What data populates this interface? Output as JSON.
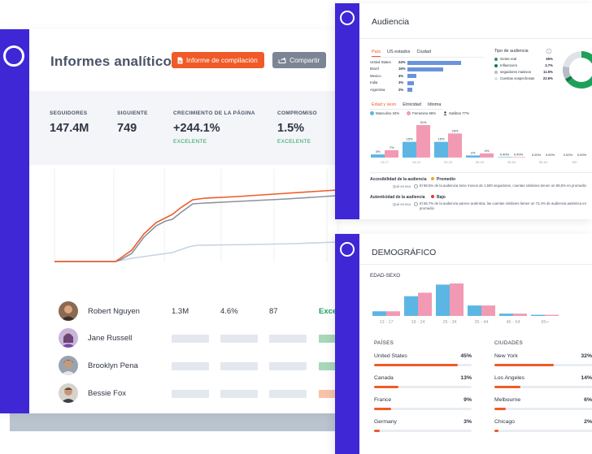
{
  "main": {
    "page_title": "Informes analíticos",
    "compile_button": "Informe de compilación",
    "share_button": "Compartir",
    "stats": [
      {
        "label": "SEGUIDORES",
        "value": "147.4M",
        "sub": ""
      },
      {
        "label": "SIGUIENTE",
        "value": "749",
        "sub": ""
      },
      {
        "label": "CRECIMIENTO DE LA PÁGINA",
        "value": "+244.1%",
        "sub": "EXCELENTE"
      },
      {
        "label": "COMPROMISO",
        "value": "1.5%",
        "sub": "EXCELENTE"
      }
    ],
    "influencers": [
      {
        "name": "Robert Nguyen",
        "followers": "1.3M",
        "engagement": "4.6%",
        "count": "87",
        "quality": "Exce"
      },
      {
        "name": "Jane Russell"
      },
      {
        "name": "Brooklyn Pena"
      },
      {
        "name": "Bessie Fox"
      }
    ],
    "colors": {
      "brand": "#3f27d6",
      "accent": "#f05a28",
      "neutral": "#7c8593",
      "good": "#1ea05a"
    },
    "icons": {
      "compile": "document-icon",
      "share": "share-icon"
    }
  },
  "audience": {
    "title": "Audiencia",
    "country_tabs": [
      "País",
      "US estados",
      "Ciudad"
    ],
    "countries": [
      {
        "name": "United States",
        "pct": "24%",
        "value": 24
      },
      {
        "name": "Brazil",
        "pct": "16%",
        "value": 16
      },
      {
        "name": "Mexico",
        "pct": "4%",
        "value": 4
      },
      {
        "name": "India",
        "pct": "3%",
        "value": 3
      },
      {
        "name": "Argentina",
        "pct": "2%",
        "value": 2
      }
    ],
    "type_title": "Tipo de audiencia",
    "types": [
      {
        "label": "Gente real",
        "pct": "65%",
        "color": "#1ea05a"
      },
      {
        "label": "Influencers",
        "pct": "3.7%",
        "color": "#147a44"
      },
      {
        "label": "seguidores masivos",
        "pct": "11.5%",
        "color": "#b5bcc6"
      },
      {
        "label": "Cuentas sospechosas",
        "pct": "22.6%",
        "color": "#dfe3e8"
      }
    ],
    "demo_tabs": [
      "Edad y sexo",
      "Etnicidad",
      "Idioma"
    ],
    "legend": {
      "male": "Masculino 34%",
      "female": "Femenino 66%",
      "lgbtq": "Sutilitos 77%"
    },
    "age_bars": [
      {
        "age": "13-17",
        "male": 3,
        "female": 7,
        "male_label": "3%",
        "female_label": "7%"
      },
      {
        "age": "18-24",
        "male": 15,
        "female": 31,
        "male_label": "15%",
        "female_label": "31%"
      },
      {
        "age": "25-34",
        "male": 15,
        "female": 23,
        "male_label": "15%",
        "female_label": "23%"
      },
      {
        "age": "35-44",
        "male": 2,
        "female": 4,
        "male_label": "2%",
        "female_label": "4%"
      },
      {
        "age": "45-54",
        "male": 0.4,
        "female": 0.4,
        "male_label": "0.40%",
        "female_label": "0.40%"
      },
      {
        "age": "55-64",
        "male": 0,
        "female": 0,
        "male_label": "0.00%",
        "female_label": "0.00%"
      },
      {
        "age": "65+",
        "male": 0,
        "female": 0,
        "male_label": "0.00%",
        "female_label": "0.00%"
      }
    ],
    "credibility": {
      "title": "Accesibilidad de la audiencia",
      "badge": "Promedio",
      "badge_color": "#f5a623",
      "q": "Qué es eso",
      "text": "El 88,5% de la audiencia tiene menos de 1.500 seguidores, cuentas similares tienen un 89,5% en promedio"
    },
    "authenticity": {
      "title": "Autenticidad de la audiencia",
      "badge": "Bajo",
      "badge_color": "#e8343a",
      "q": "Qué es eso",
      "text": "El 56,7% de la audiencia parece auténtica; las cuentas similares tienen un 73,4% de audiencia auténtica en promedio"
    }
  },
  "demographic": {
    "title": "DEMOGRÁFICO",
    "subtitle": "EDAD-SEXO",
    "ages": [
      "13 - 17",
      "18 - 24",
      "25 - 34",
      "35 - 44",
      "45 - 54",
      "65+"
    ],
    "male": [
      4,
      17,
      27,
      9,
      2,
      1
    ],
    "female": [
      4,
      20,
      28,
      9,
      2,
      1
    ],
    "countries_title": "PAÍSES",
    "countries": [
      {
        "name": "United States",
        "pct": "45%",
        "value": 45
      },
      {
        "name": "Canada",
        "pct": "13%",
        "value": 13
      },
      {
        "name": "France",
        "pct": "9%",
        "value": 9
      },
      {
        "name": "Germany",
        "pct": "3%",
        "value": 3
      }
    ],
    "cities_title": "CIUDADES",
    "cities": [
      {
        "name": "New York",
        "pct": "32%",
        "value": 32
      },
      {
        "name": "Los Angeles",
        "pct": "14%",
        "value": 14
      },
      {
        "name": "Melbourne",
        "pct": "6%",
        "value": 6
      },
      {
        "name": "Chicago",
        "pct": "2%",
        "value": 2
      }
    ],
    "colors": {
      "male": "#5cb6e4",
      "female": "#f29ab4"
    }
  }
}
